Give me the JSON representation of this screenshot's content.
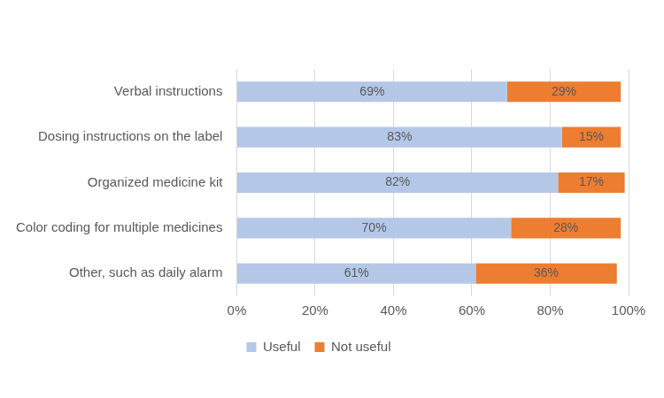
{
  "chart_data": {
    "type": "bar",
    "orientation": "horizontal",
    "stacked": true,
    "data_labels": true,
    "grid": true,
    "legend": "bottom",
    "categories": [
      "Verbal instructions",
      "Dosing instructions on the label",
      "Organized medicine kit",
      "Color coding for multiple medicines",
      "Other, such as daily alarm"
    ],
    "series": [
      {
        "name": "Useful",
        "color": "#b4c7e7",
        "values": [
          69,
          83,
          82,
          70,
          61
        ],
        "value_labels": [
          "69%",
          "83%",
          "82%",
          "70%",
          "61%"
        ]
      },
      {
        "name": "Not useful",
        "color": "#ed7d31",
        "values": [
          29,
          15,
          17,
          28,
          36
        ],
        "value_labels": [
          "29%",
          "15%",
          "17%",
          "28%",
          "36%"
        ]
      }
    ],
    "xlim": [
      0,
      100
    ],
    "xticks": [
      {
        "value": 0,
        "label": "0%"
      },
      {
        "value": 20,
        "label": "20%"
      },
      {
        "value": 40,
        "label": "40%"
      },
      {
        "value": 60,
        "label": "60%"
      },
      {
        "value": 80,
        "label": "80%"
      },
      {
        "value": 100,
        "label": "100%"
      }
    ]
  }
}
